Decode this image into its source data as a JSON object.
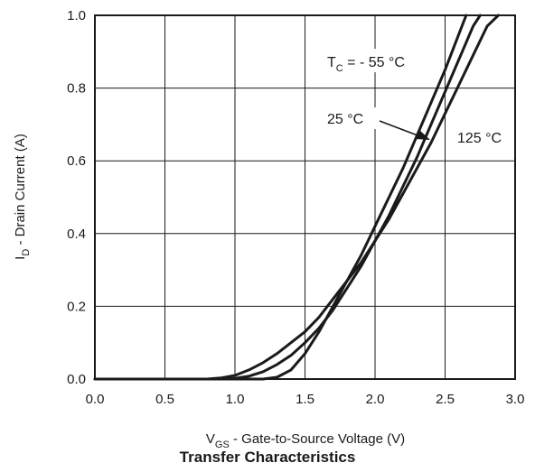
{
  "chart_data": {
    "type": "line",
    "title": "Transfer Characteristics",
    "xlabel": {
      "main": "V",
      "sub": "GS",
      "rest": " - Gate-to-Source Voltage (V)"
    },
    "ylabel": {
      "main": "I",
      "sub": "D",
      "rest": " - Drain Current (A)"
    },
    "xlim": [
      0,
      3.0
    ],
    "ylim": [
      0,
      1.0
    ],
    "xticks": [
      "0.0",
      "0.5",
      "1.0",
      "1.5",
      "2.0",
      "2.5",
      "3.0"
    ],
    "yticks": [
      "0.0",
      "0.2",
      "0.4",
      "0.6",
      "0.8",
      "1.0"
    ],
    "grid": true,
    "series": [
      {
        "name": "T_C = - 55 °C",
        "x": [
          0,
          0.9,
          1.1,
          1.2,
          1.3,
          1.4,
          1.5,
          1.6,
          1.7,
          1.8,
          1.9,
          2.0,
          2.1,
          2.2,
          2.3,
          2.4,
          2.5,
          2.6,
          2.65
        ],
        "y": [
          0,
          0,
          0,
          0,
          0.005,
          0.025,
          0.07,
          0.13,
          0.2,
          0.27,
          0.34,
          0.42,
          0.5,
          0.58,
          0.67,
          0.76,
          0.85,
          0.95,
          1.0
        ]
      },
      {
        "name": "25 °C",
        "x": [
          0,
          0.9,
          1.0,
          1.1,
          1.2,
          1.3,
          1.4,
          1.5,
          1.6,
          1.7,
          1.8,
          1.9,
          2.0,
          2.1,
          2.2,
          2.3,
          2.4,
          2.5,
          2.6,
          2.7,
          2.75
        ],
        "y": [
          0,
          0,
          0.002,
          0.008,
          0.02,
          0.04,
          0.065,
          0.1,
          0.14,
          0.19,
          0.25,
          0.31,
          0.38,
          0.45,
          0.53,
          0.61,
          0.7,
          0.79,
          0.88,
          0.97,
          1.0
        ]
      },
      {
        "name": "125 °C",
        "x": [
          0,
          0.8,
          0.9,
          1.0,
          1.1,
          1.2,
          1.3,
          1.4,
          1.5,
          1.6,
          1.7,
          1.8,
          1.9,
          2.0,
          2.1,
          2.2,
          2.3,
          2.4,
          2.5,
          2.6,
          2.7,
          2.8,
          2.88
        ],
        "y": [
          0,
          0,
          0.003,
          0.01,
          0.025,
          0.045,
          0.07,
          0.1,
          0.13,
          0.17,
          0.22,
          0.27,
          0.32,
          0.38,
          0.44,
          0.51,
          0.58,
          0.65,
          0.73,
          0.81,
          0.89,
          0.97,
          1.0
        ]
      }
    ],
    "annotations": {
      "tc_main": "T",
      "tc_sub": "C",
      "tc_rest": " = - 55 °C",
      "label_25": "25 °C",
      "label_125": "125 °C"
    }
  }
}
